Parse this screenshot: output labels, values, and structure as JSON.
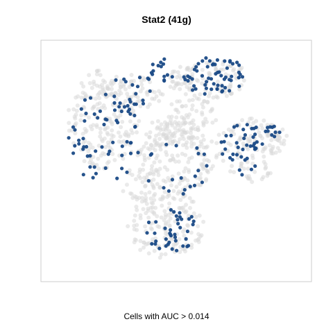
{
  "chart_data": {
    "type": "scatter",
    "title": "Stat2 (41g)",
    "caption": "Cells with AUC > 0.014",
    "xlim": [
      0,
      100
    ],
    "ylim": [
      0,
      100
    ],
    "axes_visible": false,
    "grid": false,
    "colors": {
      "background": "#d9d9d9",
      "highlight": "#1a4a86",
      "frame": "#cccccc"
    },
    "series": [
      {
        "role": "background",
        "clusters": [
          {
            "cx": 22,
            "cy": 68,
            "rx": 14,
            "ry": 22,
            "n": 190,
            "seed": 11
          },
          {
            "cx": 32,
            "cy": 80,
            "rx": 13,
            "ry": 8,
            "n": 70,
            "seed": 12
          },
          {
            "cx": 44,
            "cy": 62,
            "rx": 6,
            "ry": 6,
            "n": 40,
            "seed": 13
          },
          {
            "cx": 62,
            "cy": 86,
            "rx": 16,
            "ry": 9,
            "n": 120,
            "seed": 14
          },
          {
            "cx": 50,
            "cy": 52,
            "rx": 15,
            "ry": 17,
            "n": 170,
            "seed": 15
          },
          {
            "cx": 56,
            "cy": 70,
            "rx": 10,
            "ry": 8,
            "n": 60,
            "seed": 16
          },
          {
            "cx": 78,
            "cy": 55,
            "rx": 13,
            "ry": 15,
            "n": 110,
            "seed": 17
          },
          {
            "cx": 87,
            "cy": 60,
            "rx": 6,
            "ry": 6,
            "n": 25,
            "seed": 18
          },
          {
            "cx": 46,
            "cy": 22,
            "rx": 15,
            "ry": 15,
            "n": 160,
            "seed": 19
          },
          {
            "cx": 36,
            "cy": 40,
            "rx": 8,
            "ry": 8,
            "n": 40,
            "seed": 20
          }
        ]
      },
      {
        "role": "highlight",
        "clusters": [
          {
            "cx": 22,
            "cy": 60,
            "rx": 14,
            "ry": 20,
            "n": 58,
            "seed": 31
          },
          {
            "cx": 33,
            "cy": 80,
            "rx": 10,
            "ry": 8,
            "n": 20,
            "seed": 32
          },
          {
            "cx": 45,
            "cy": 90,
            "rx": 5,
            "ry": 5,
            "n": 14,
            "seed": 33
          },
          {
            "cx": 65,
            "cy": 87,
            "rx": 12,
            "ry": 9,
            "n": 60,
            "seed": 34
          },
          {
            "cx": 50,
            "cy": 48,
            "rx": 13,
            "ry": 13,
            "n": 20,
            "seed": 35
          },
          {
            "cx": 76,
            "cy": 55,
            "rx": 9,
            "ry": 12,
            "n": 40,
            "seed": 36
          },
          {
            "cx": 88,
            "cy": 62,
            "rx": 4,
            "ry": 4,
            "n": 10,
            "seed": 37
          },
          {
            "cx": 48,
            "cy": 20,
            "rx": 10,
            "ry": 10,
            "n": 40,
            "seed": 38
          }
        ]
      }
    ]
  }
}
